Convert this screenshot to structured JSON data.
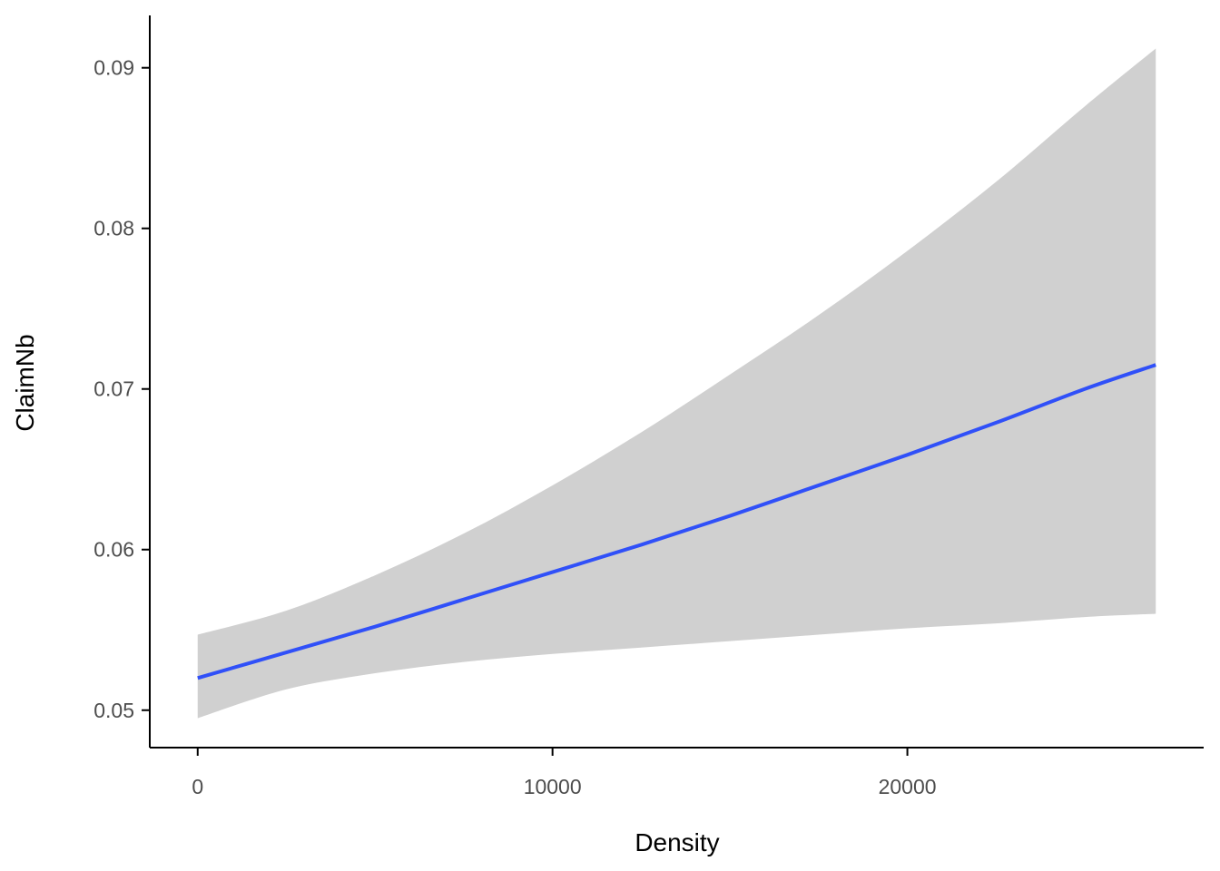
{
  "chart_data": {
    "type": "line",
    "title": "",
    "xlabel": "Density",
    "ylabel": "ClaimNb",
    "xlim": [
      -1350,
      28350
    ],
    "ylim": [
      0.04767,
      0.09326
    ],
    "x_ticks": [
      0,
      10000,
      20000
    ],
    "x_tick_labels": [
      "0",
      "10000",
      "20000"
    ],
    "y_ticks": [
      0.05,
      0.06,
      0.07,
      0.08,
      0.09
    ],
    "y_tick_labels": [
      "0.05",
      "0.06",
      "0.07",
      "0.08",
      "0.09"
    ],
    "grid": false,
    "legend": "none",
    "colors": {
      "line": "#3050f8",
      "band": "#d0d0d0",
      "axis": "#000000",
      "tick_text": "#4d4d4d"
    },
    "series": [
      {
        "x": [
          0,
          2500,
          5000,
          7500,
          10000,
          12500,
          15000,
          17500,
          20000,
          22500,
          25000,
          27000
        ],
        "y": [
          0.052,
          0.0536,
          0.0552,
          0.0569,
          0.0586,
          0.0603,
          0.0621,
          0.064,
          0.0659,
          0.0679,
          0.07,
          0.0715
        ],
        "lower": [
          0.0495,
          0.0513,
          0.0523,
          0.053,
          0.0535,
          0.0539,
          0.0543,
          0.0547,
          0.0551,
          0.0554,
          0.0558,
          0.056
        ],
        "upper": [
          0.0547,
          0.0562,
          0.0584,
          0.061,
          0.064,
          0.0673,
          0.0709,
          0.0746,
          0.0786,
          0.0829,
          0.0876,
          0.0912
        ]
      }
    ]
  }
}
